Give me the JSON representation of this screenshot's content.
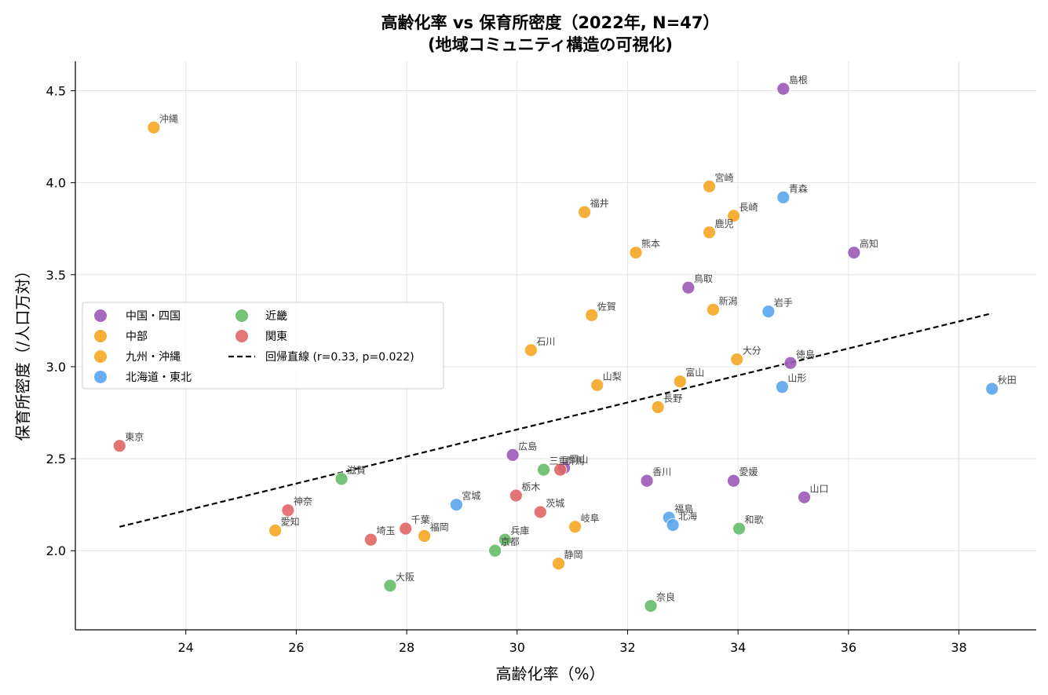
{
  "chart_data": {
    "type": "scatter",
    "title": "高齢化率 vs 保育所密度（2022年, N=47）",
    "subtitle": "(地域コミュニティ構造の可視化)",
    "xlabel": "高齢化率（%）",
    "ylabel": "保育所密度（/人口万対）",
    "xlim": [
      22.0,
      39.4
    ],
    "ylim": [
      1.57,
      4.66
    ],
    "x_ticks": [
      24,
      26,
      28,
      30,
      32,
      34,
      36,
      38
    ],
    "y_ticks": [
      2.0,
      2.5,
      3.0,
      3.5,
      4.0,
      4.5
    ],
    "x_tick_labels": [
      "24",
      "26",
      "28",
      "30",
      "32",
      "34",
      "36",
      "38"
    ],
    "y_tick_labels": [
      "2.0",
      "2.5",
      "3.0",
      "3.5",
      "4.0",
      "4.5"
    ],
    "grid": true,
    "legend_position": "center-left",
    "series": [
      {
        "name": "中国・四国",
        "color": "#9b59b6",
        "points": [
          {
            "label": "島根",
            "x": 34.82,
            "y": 4.51
          },
          {
            "label": "高知",
            "x": 36.1,
            "y": 3.62
          },
          {
            "label": "鳥取",
            "x": 33.1,
            "y": 3.43
          },
          {
            "label": "徳島",
            "x": 34.95,
            "y": 3.02
          },
          {
            "label": "広島",
            "x": 29.92,
            "y": 2.52
          },
          {
            "label": "香川",
            "x": 32.35,
            "y": 2.38
          },
          {
            "label": "愛媛",
            "x": 33.92,
            "y": 2.38
          },
          {
            "label": "山口",
            "x": 35.2,
            "y": 2.29
          },
          {
            "label": "岡山",
            "x": 30.85,
            "y": 2.45
          }
        ]
      },
      {
        "name": "中部",
        "color": "#f5a623",
        "points": [
          {
            "label": "福井",
            "x": 31.22,
            "y": 3.84
          },
          {
            "label": "新潟",
            "x": 33.55,
            "y": 3.31
          },
          {
            "label": "石川",
            "x": 30.25,
            "y": 3.09
          },
          {
            "label": "山梨",
            "x": 31.45,
            "y": 2.9
          },
          {
            "label": "富山",
            "x": 32.95,
            "y": 2.92
          },
          {
            "label": "長野",
            "x": 32.55,
            "y": 2.78
          },
          {
            "label": "岐阜",
            "x": 31.05,
            "y": 2.13
          },
          {
            "label": "静岡",
            "x": 30.75,
            "y": 1.93
          },
          {
            "label": "愛知",
            "x": 25.62,
            "y": 2.11
          }
        ]
      },
      {
        "name": "九州・沖縄",
        "color": "#f5a623",
        "points": [
          {
            "label": "沖縄",
            "x": 23.42,
            "y": 4.3
          },
          {
            "label": "宮崎",
            "x": 33.48,
            "y": 3.98
          },
          {
            "label": "長崎",
            "x": 33.92,
            "y": 3.82
          },
          {
            "label": "鹿児",
            "x": 33.48,
            "y": 3.73
          },
          {
            "label": "熊本",
            "x": 32.15,
            "y": 3.62
          },
          {
            "label": "佐賀",
            "x": 31.35,
            "y": 3.28
          },
          {
            "label": "大分",
            "x": 33.98,
            "y": 3.04
          },
          {
            "label": "福岡",
            "x": 28.32,
            "y": 2.08
          }
        ]
      },
      {
        "name": "北海道・東北",
        "color": "#5aa5ee",
        "points": [
          {
            "label": "青森",
            "x": 34.82,
            "y": 3.92
          },
          {
            "label": "岩手",
            "x": 34.55,
            "y": 3.3
          },
          {
            "label": "山形",
            "x": 34.8,
            "y": 2.89
          },
          {
            "label": "秋田",
            "x": 38.6,
            "y": 2.88
          },
          {
            "label": "宮城",
            "x": 28.9,
            "y": 2.25
          },
          {
            "label": "福島",
            "x": 32.75,
            "y": 2.18
          },
          {
            "label": "北海",
            "x": 32.82,
            "y": 2.14
          }
        ]
      },
      {
        "name": "近畿",
        "color": "#66bb6a",
        "points": [
          {
            "label": "滋賀",
            "x": 26.82,
            "y": 2.39
          },
          {
            "label": "三重",
            "x": 30.48,
            "y": 2.44
          },
          {
            "label": "兵庫",
            "x": 29.78,
            "y": 2.06
          },
          {
            "label": "京都",
            "x": 29.6,
            "y": 2.0
          },
          {
            "label": "和歌",
            "x": 34.02,
            "y": 2.12
          },
          {
            "label": "大阪",
            "x": 27.7,
            "y": 1.81
          },
          {
            "label": "奈良",
            "x": 32.42,
            "y": 1.7
          }
        ]
      },
      {
        "name": "関東",
        "color": "#e06666",
        "points": [
          {
            "label": "東京",
            "x": 22.8,
            "y": 2.57
          },
          {
            "label": "神奈",
            "x": 25.85,
            "y": 2.22
          },
          {
            "label": "栃木",
            "x": 29.98,
            "y": 2.3
          },
          {
            "label": "茨城",
            "x": 30.42,
            "y": 2.21
          },
          {
            "label": "群馬",
            "x": 30.78,
            "y": 2.44
          },
          {
            "label": "千葉",
            "x": 27.98,
            "y": 2.12
          },
          {
            "label": "埼玉",
            "x": 27.35,
            "y": 2.06
          }
        ]
      }
    ],
    "regression": {
      "name": "回帰直線 (r=0.33, p=0.022)",
      "color": "#000000",
      "x": [
        22.8,
        38.6
      ],
      "y": [
        2.13,
        3.29
      ]
    }
  }
}
